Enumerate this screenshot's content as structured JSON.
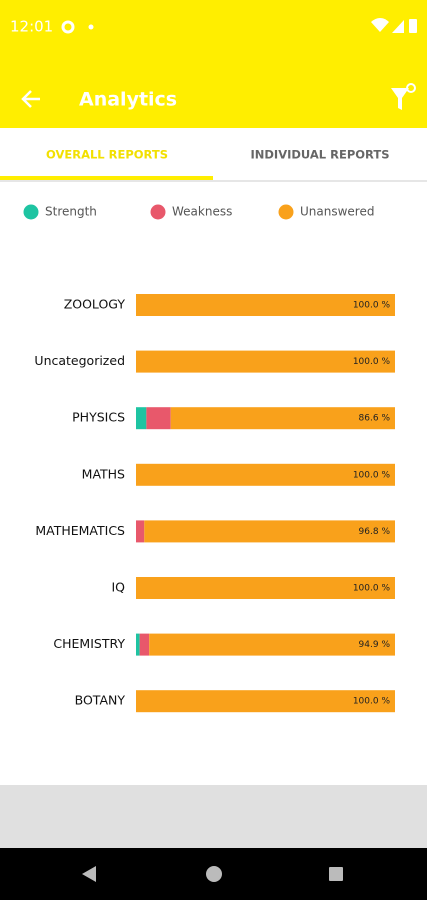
{
  "status_bar": {
    "time": "12:01"
  },
  "app_bar": {
    "title": "Analytics"
  },
  "tabs": [
    "OVERALL REPORTS",
    "INDIVIDUAL REPORTS"
  ],
  "chart_data": {
    "type": "bar",
    "orientation": "horizontal",
    "stacked": true,
    "categories": [
      "ZOOLOGY",
      "Uncategorized",
      "PHYSICS",
      "MATHS",
      "MATHEMATICS",
      "IQ",
      "CHEMISTRY",
      "BOTANY"
    ],
    "xlim": [
      0,
      100
    ],
    "series": [
      {
        "name": "Strength",
        "color": "#1ec4a2",
        "values": [
          0,
          0,
          4.0,
          0,
          0,
          0,
          1.4,
          0
        ]
      },
      {
        "name": "Weakness",
        "color": "#e8586b",
        "values": [
          0,
          0,
          9.4,
          0,
          3.2,
          0,
          3.7,
          0
        ]
      },
      {
        "name": "Unanswered",
        "color": "#f9a11b",
        "values": [
          100,
          100,
          86.6,
          100,
          96.8,
          100,
          94.9,
          100
        ],
        "value_labels": [
          "100.0 %",
          "100.0 %",
          "86.6 %",
          "100.0 %",
          "96.8 %",
          "100.0 %",
          "94.9 %",
          "100.0 %"
        ]
      }
    ],
    "legend": "top"
  }
}
